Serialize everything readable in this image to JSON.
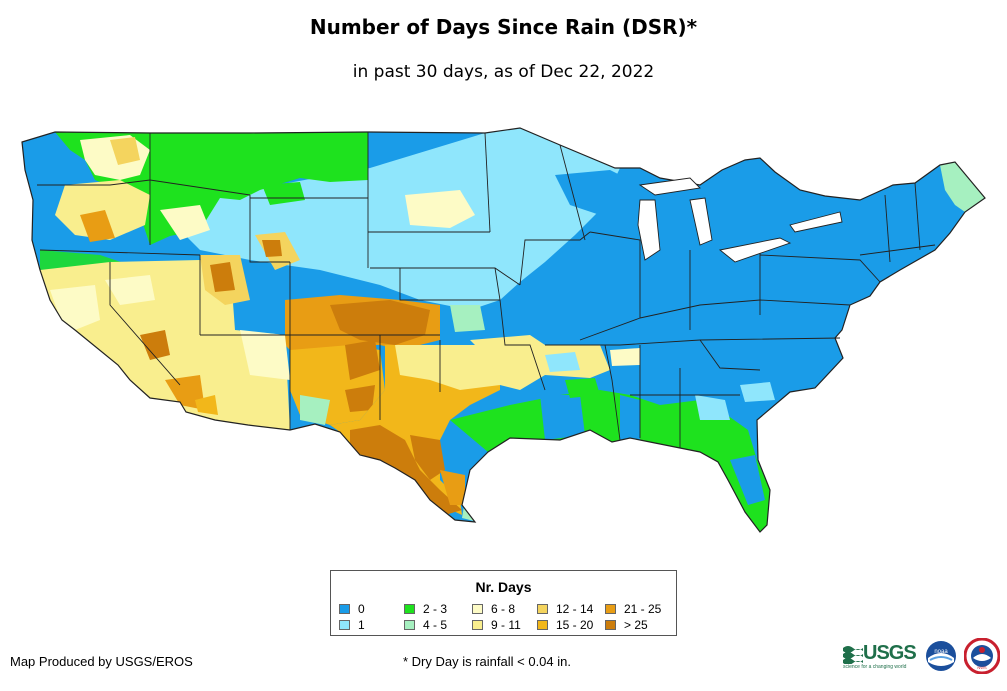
{
  "title": "Number of Days Since Rain (DSR)*",
  "subtitle": "in past 30 days, as of Dec 22, 2022",
  "legend": {
    "title": "Nr. Days",
    "items": [
      {
        "label": "0",
        "color": "#1a9ce8"
      },
      {
        "label": "1",
        "color": "#8fe6fc"
      },
      {
        "label": "2 - 3",
        "color": "#1ee21e"
      },
      {
        "label": "4 - 5",
        "color": "#a6f0c0"
      },
      {
        "label": "6 - 8",
        "color": "#fdfbc6"
      },
      {
        "label": "9 - 11",
        "color": "#f9ee8e"
      },
      {
        "label": "12 - 14",
        "color": "#f4d45e"
      },
      {
        "label": "15 - 20",
        "color": "#f2b71a"
      },
      {
        "label": "21 - 25",
        "color": "#e89d14"
      },
      {
        "label": "> 25",
        "color": "#cc7d0c"
      }
    ]
  },
  "footer": {
    "credit": "Map Produced by USGS/EROS",
    "note": "* Dry Day is rainfall < 0.04 in."
  },
  "logos": {
    "usgs": "USGS",
    "usgs_tagline": "science for a changing world",
    "noaa": "noaa",
    "nws": "NWS"
  }
}
